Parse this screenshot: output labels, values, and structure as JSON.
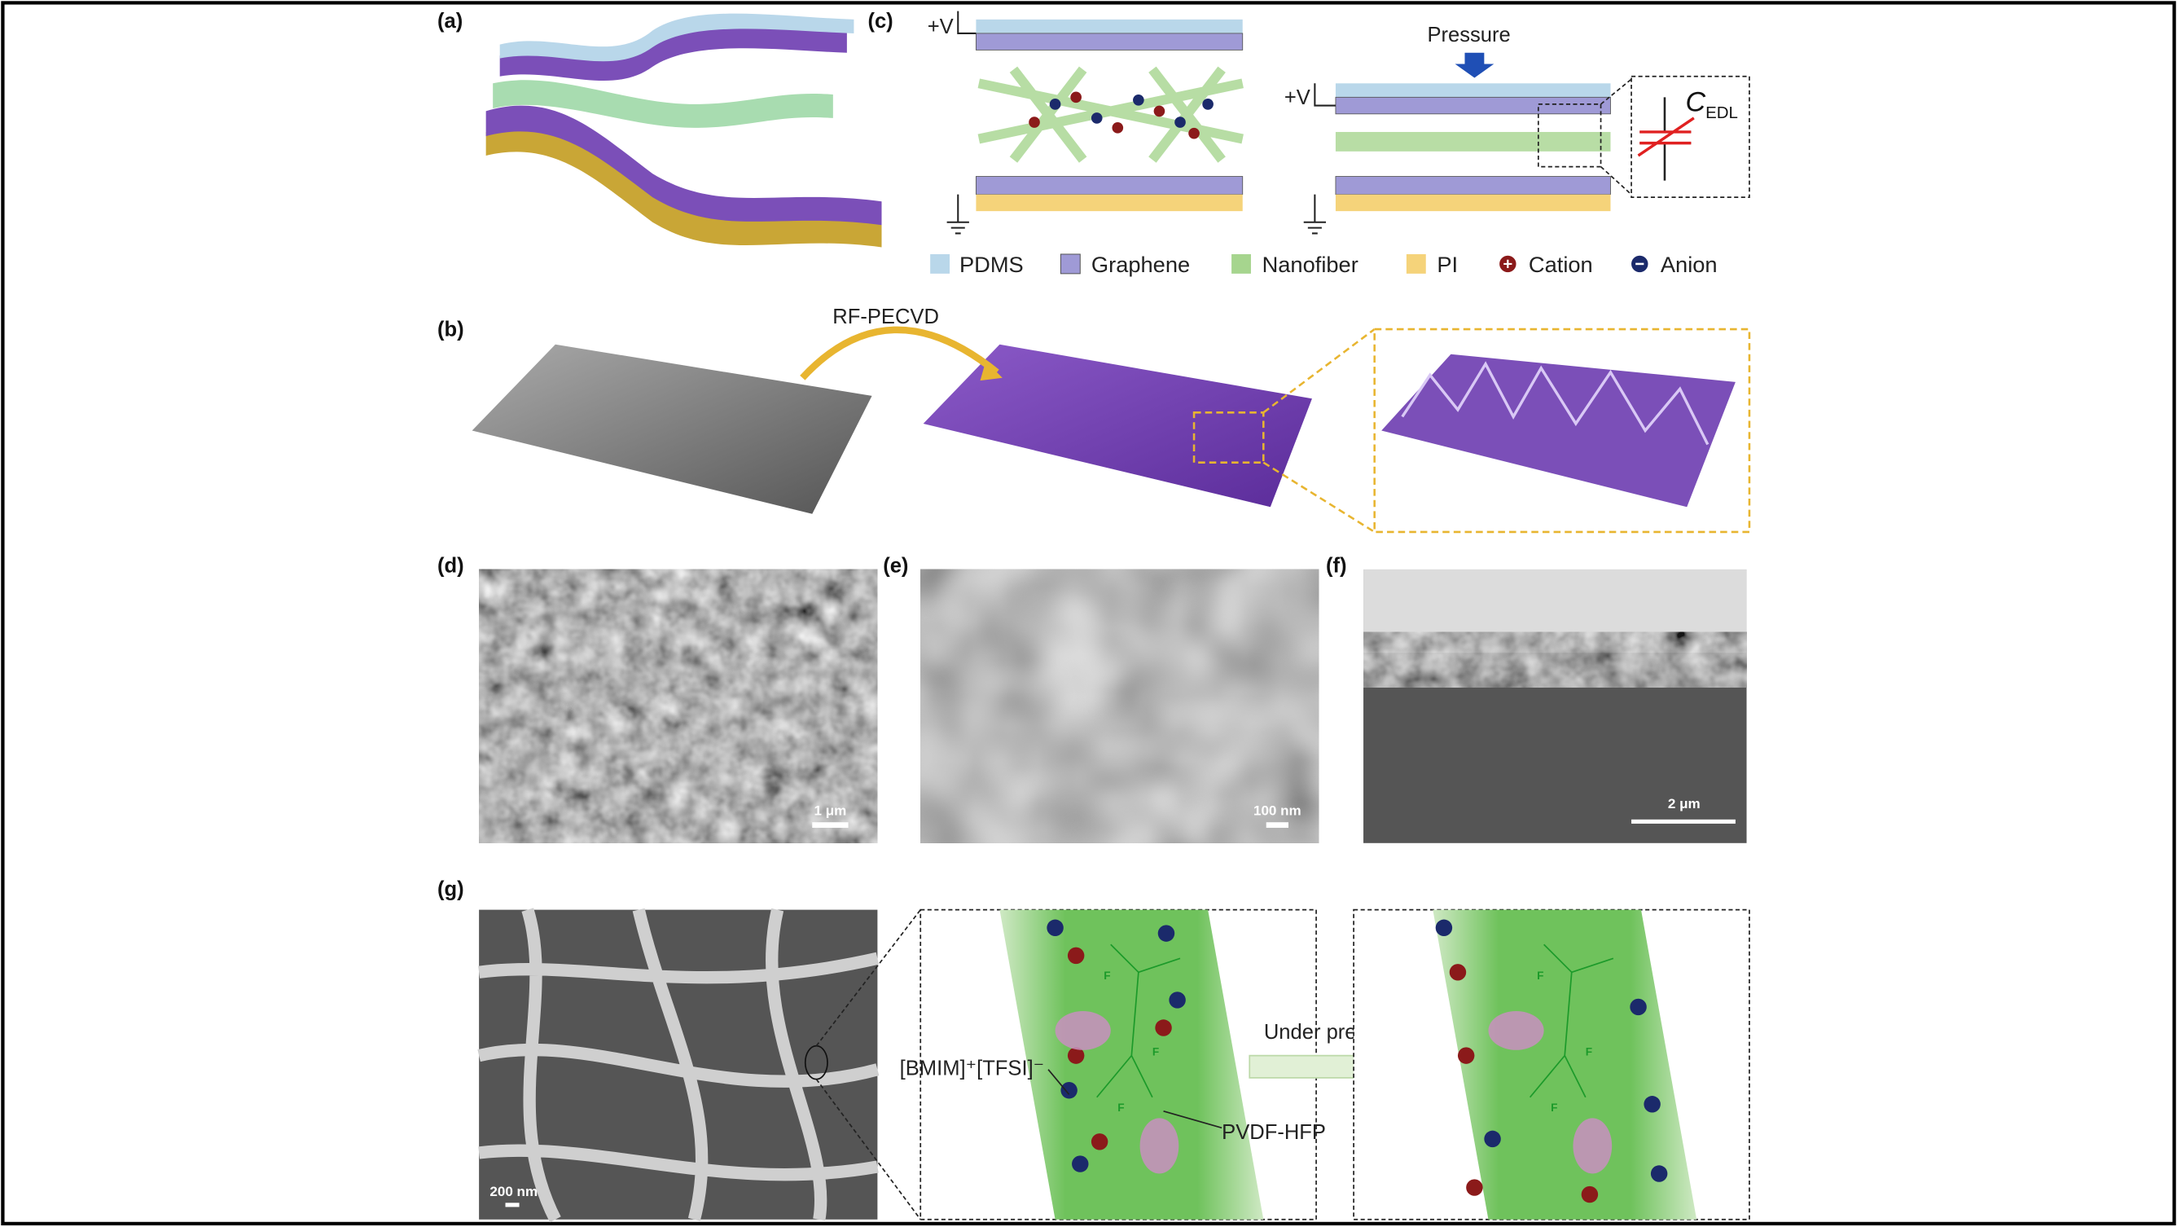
{
  "panel_labels": [
    "(a)",
    "(b)",
    "(c)",
    "(d)",
    "(e)",
    "(f)",
    "(g)"
  ],
  "panel_c": {
    "voltage_label": "+V",
    "pressure_label": "Pressure",
    "capacitance_symbol": "C",
    "capacitance_subscript": "EDL"
  },
  "legend": [
    "PDMS",
    "Graphene",
    "Nanofiber",
    "PI",
    "Cation",
    "Anion"
  ],
  "panel_b": {
    "process_label": "RF-PECVD"
  },
  "scale_bars": {
    "d": "1 μm",
    "e": "100 nm",
    "f": "2 μm",
    "g": "200 nm"
  },
  "panel_g": {
    "ionic_liquid": "[BMIM]⁺[TFSI]⁻",
    "polymer": "PVDF-HFP",
    "process_label": "Under pressure",
    "fluorine": "F"
  }
}
